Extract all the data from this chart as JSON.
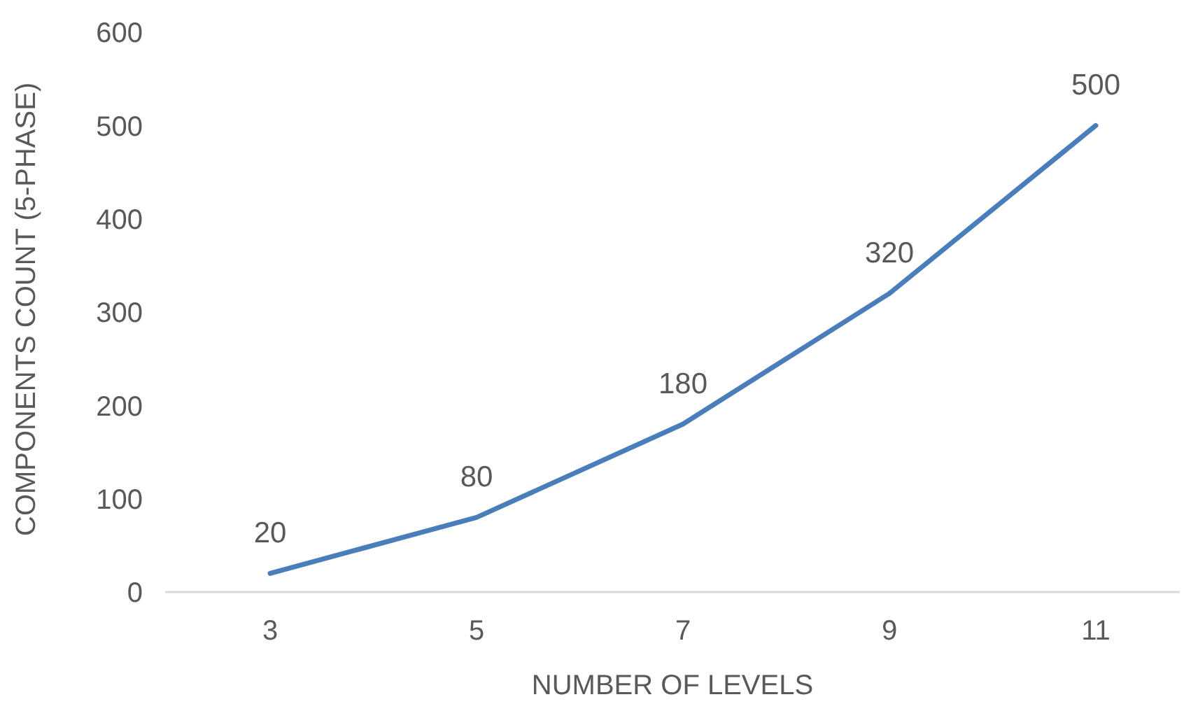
{
  "chart_data": {
    "type": "line",
    "xlabel": "NUMBER OF LEVELS",
    "ylabel": "COMPONENTS COUNT (5-PHASE)",
    "categories": [
      "3",
      "5",
      "7",
      "9",
      "11"
    ],
    "series": [
      {
        "color": "#4a7ebb",
        "values": [
          20,
          80,
          180,
          320,
          500
        ]
      }
    ],
    "ylim": [
      0,
      600
    ],
    "yticks": [
      0,
      100,
      200,
      300,
      400,
      500,
      600
    ],
    "data_labels": true,
    "marker": "none"
  }
}
